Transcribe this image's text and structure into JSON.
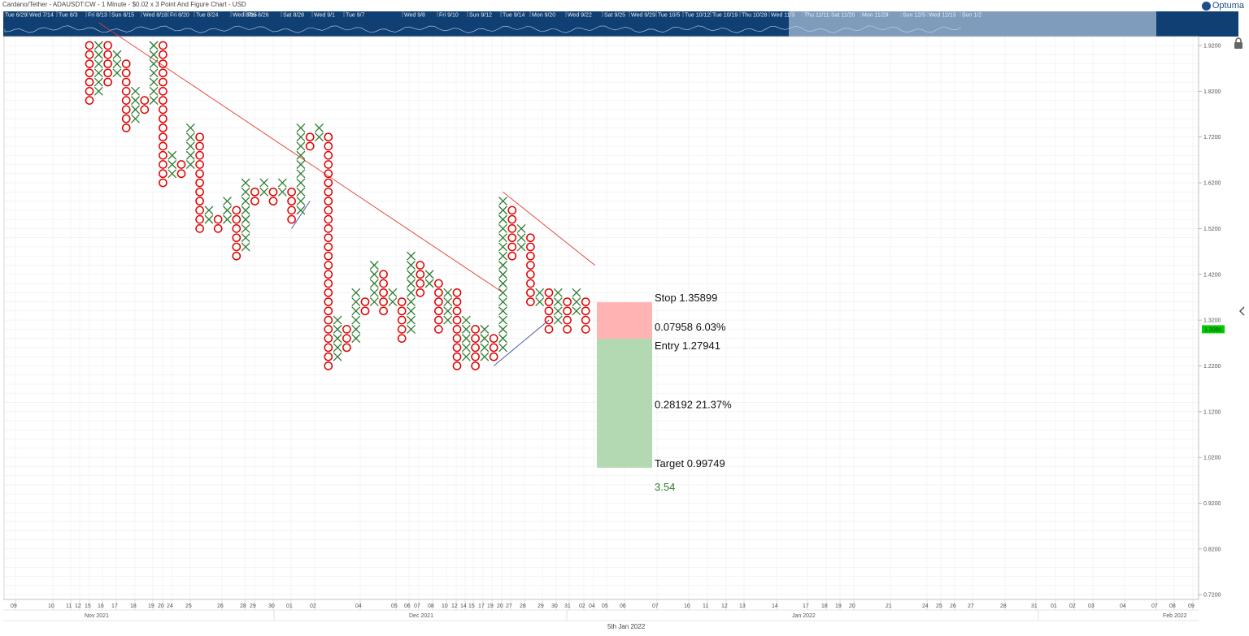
{
  "header": {
    "title": "Cardano/Tether - ADAUSDT:CW - 1 Minute - $0.02 x 3 Point And Figure Chart - USD",
    "brand": "Optuma"
  },
  "navigator": {
    "labels": [
      "Tue 6/29",
      "Wed 7/14",
      "Tue 8/3",
      "Fri 8/13",
      "Sun 8/15",
      "Wed 8/18",
      "Fri 8/20",
      "Tue 8/24",
      "Wed 8/25",
      "Thu 8/26",
      "Sat 8/28",
      "Wed 9/1",
      "Tue 9/7",
      "Wed 9/8",
      "Fri 9/10",
      "Sun 9/12",
      "Tue 9/14",
      "Mon 9/20",
      "Wed 9/22",
      "Sat 9/25",
      "Wed 9/29",
      "Tue 10/5",
      "Tue 10/12",
      "Tue 10/19",
      "Thu 10/28",
      "Wed 11/3",
      "Thu 11/11",
      "Sat 11/20",
      "Mon 11/29",
      "Sun 12/5",
      "Wed 12/15",
      "Sun 1/2"
    ]
  },
  "chart_data": {
    "type": "point-and-figure",
    "box_size": 0.02,
    "reversal": 3,
    "y_axis": {
      "ticks": [
        "1.9200",
        "1.8200",
        "1.7200",
        "1.6200",
        "1.5200",
        "1.4200",
        "1.3200",
        "1.2200",
        "1.1200",
        "1.0200",
        "0.9200",
        "0.8200",
        "0.7200"
      ],
      "range": [
        0.7,
        1.94
      ],
      "current_price": "1.3000",
      "current_value": 1.3
    },
    "x_axis": {
      "day_ticks": [
        "09",
        "10",
        "11",
        "12",
        "15",
        "16",
        "17",
        "18",
        "19",
        "20",
        "24",
        "25",
        "26",
        "28",
        "29",
        "30",
        "01",
        "02",
        "04",
        "05",
        "06",
        "07",
        "08",
        "10",
        "12",
        "14",
        "15",
        "17",
        "19",
        "20",
        "27",
        "28",
        "29",
        "30",
        "31",
        "02",
        "04",
        "05",
        "06",
        "07",
        "10",
        "11",
        "12",
        "13",
        "14",
        "17",
        "18",
        "19",
        "20",
        "21",
        "24",
        "25",
        "26",
        "27",
        "28",
        "31",
        "01",
        "02",
        "03",
        "04",
        "07",
        "08",
        "09"
      ],
      "months": [
        "Nov 2021",
        "Dec 2021",
        "Jan 2022",
        "Feb 2022"
      ],
      "center_date": "5th Jan 2022"
    },
    "columns": [
      {
        "type": "O",
        "high": 1.92,
        "low": 1.8
      },
      {
        "type": "X",
        "high": 1.92,
        "low": 1.82
      },
      {
        "type": "O",
        "high": 1.92,
        "low": 1.84
      },
      {
        "type": "X",
        "high": 1.9,
        "low": 1.86
      },
      {
        "type": "O",
        "high": 1.88,
        "low": 1.74
      },
      {
        "type": "X",
        "high": 1.82,
        "low": 1.76
      },
      {
        "type": "O",
        "high": 1.8,
        "low": 1.78
      },
      {
        "type": "X",
        "high": 1.92,
        "low": 1.8
      },
      {
        "type": "O",
        "high": 1.92,
        "low": 1.62
      },
      {
        "type": "X",
        "high": 1.68,
        "low": 1.64
      },
      {
        "type": "O",
        "high": 1.66,
        "low": 1.64
      },
      {
        "type": "X",
        "high": 1.74,
        "low": 1.66
      },
      {
        "type": "O",
        "high": 1.72,
        "low": 1.52
      },
      {
        "type": "X",
        "high": 1.56,
        "low": 1.54
      },
      {
        "type": "O",
        "high": 1.54,
        "low": 1.52
      },
      {
        "type": "X",
        "high": 1.58,
        "low": 1.54
      },
      {
        "type": "O",
        "high": 1.56,
        "low": 1.46
      },
      {
        "type": "X",
        "high": 1.62,
        "low": 1.48
      },
      {
        "type": "O",
        "high": 1.6,
        "low": 1.58
      },
      {
        "type": "X",
        "high": 1.62,
        "low": 1.6
      },
      {
        "type": "O",
        "high": 1.6,
        "low": 1.58
      },
      {
        "type": "X",
        "high": 1.62,
        "low": 1.6
      },
      {
        "type": "O",
        "high": 1.6,
        "low": 1.54
      },
      {
        "type": "X",
        "high": 1.74,
        "low": 1.56
      },
      {
        "type": "O",
        "high": 1.72,
        "low": 1.7
      },
      {
        "type": "X",
        "high": 1.74,
        "low": 1.72
      },
      {
        "type": "O",
        "high": 1.72,
        "low": 1.22
      },
      {
        "type": "X",
        "high": 1.32,
        "low": 1.24
      },
      {
        "type": "O",
        "high": 1.3,
        "low": 1.26
      },
      {
        "type": "X",
        "high": 1.38,
        "low": 1.28
      },
      {
        "type": "O",
        "high": 1.36,
        "low": 1.34
      },
      {
        "type": "X",
        "high": 1.44,
        "low": 1.36
      },
      {
        "type": "O",
        "high": 1.42,
        "low": 1.34
      },
      {
        "type": "X",
        "high": 1.38,
        "low": 1.36
      },
      {
        "type": "O",
        "high": 1.36,
        "low": 1.28
      },
      {
        "type": "X",
        "high": 1.46,
        "low": 1.3
      },
      {
        "type": "O",
        "high": 1.44,
        "low": 1.38
      },
      {
        "type": "X",
        "high": 1.42,
        "low": 1.4
      },
      {
        "type": "O",
        "high": 1.4,
        "low": 1.3
      },
      {
        "type": "X",
        "high": 1.38,
        "low": 1.32
      },
      {
        "type": "O",
        "high": 1.38,
        "low": 1.22
      },
      {
        "type": "X",
        "high": 1.32,
        "low": 1.24
      },
      {
        "type": "O",
        "high": 1.3,
        "low": 1.22
      },
      {
        "type": "X",
        "high": 1.3,
        "low": 1.24
      },
      {
        "type": "O",
        "high": 1.28,
        "low": 1.24
      },
      {
        "type": "X",
        "high": 1.58,
        "low": 1.26
      },
      {
        "type": "O",
        "high": 1.56,
        "low": 1.46
      },
      {
        "type": "X",
        "high": 1.52,
        "low": 1.48
      },
      {
        "type": "O",
        "high": 1.5,
        "low": 1.36
      },
      {
        "type": "X",
        "high": 1.38,
        "low": 1.36
      },
      {
        "type": "O",
        "high": 1.38,
        "low": 1.3
      },
      {
        "type": "X",
        "high": 1.38,
        "low": 1.32
      },
      {
        "type": "O",
        "high": 1.36,
        "low": 1.3
      },
      {
        "type": "X",
        "high": 1.38,
        "low": 1.34
      },
      {
        "type": "O",
        "high": 1.36,
        "low": 1.3
      }
    ],
    "trendlines": [
      {
        "color": "#e53935",
        "from": [
          1,
          1.97
        ],
        "to": [
          45,
          1.38
        ]
      },
      {
        "color": "#e53935",
        "from": [
          45,
          1.6
        ],
        "to": [
          55,
          1.44
        ]
      },
      {
        "color": "#3949ab",
        "from": [
          22,
          1.52
        ],
        "to": [
          24,
          1.58
        ]
      },
      {
        "color": "#3949ab",
        "from": [
          44,
          1.22
        ],
        "to": [
          50,
          1.32
        ]
      }
    ],
    "position": {
      "stop_label": "Stop",
      "stop": "1.35899",
      "stop_value": 1.35899,
      "risk_text": "0.07958   6.03%",
      "entry_label": "Entry",
      "entry": "1.27941",
      "entry_value": 1.27941,
      "reward_text": "0.28192   21.37%",
      "target_label": "Target",
      "target": "0.99749",
      "target_value": 0.99749,
      "ratio": "3.54"
    },
    "colors": {
      "x": "#2e7d32",
      "o": "#e00000",
      "risk_zone": "#ffb3b3",
      "reward_zone": "#b3d9b3",
      "navigator": "#0f3f73",
      "price_tag": "#00cc00",
      "ratio_text": "#2e7d32"
    }
  }
}
